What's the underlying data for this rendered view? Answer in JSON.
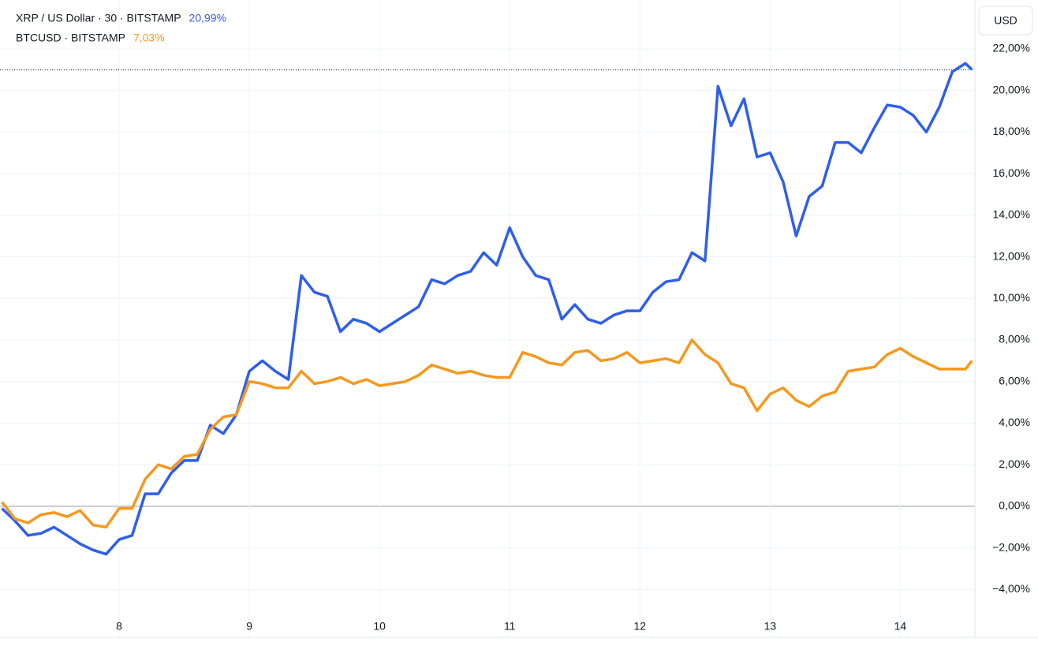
{
  "chart_data": {
    "type": "line",
    "button": "USD",
    "x": [
      7.1,
      7.2,
      7.3,
      7.4,
      7.5,
      7.6,
      7.7,
      7.8,
      7.9,
      8.0,
      8.1,
      8.2,
      8.3,
      8.4,
      8.5,
      8.6,
      8.7,
      8.8,
      8.9,
      9.0,
      9.1,
      9.2,
      9.3,
      9.4,
      9.5,
      9.6,
      9.7,
      9.8,
      9.9,
      10.0,
      10.1,
      10.2,
      10.3,
      10.4,
      10.5,
      10.6,
      10.7,
      10.8,
      10.9,
      11.0,
      11.1,
      11.2,
      11.3,
      11.4,
      11.5,
      11.6,
      11.7,
      11.8,
      11.9,
      12.0,
      12.1,
      12.2,
      12.3,
      12.4,
      12.5,
      12.6,
      12.7,
      12.8,
      12.9,
      13.0,
      13.1,
      13.2,
      13.3,
      13.4,
      13.5,
      13.6,
      13.7,
      13.8,
      13.9,
      14.0,
      14.1,
      14.2,
      14.3,
      14.4,
      14.5,
      14.55
    ],
    "series": [
      {
        "name": "XRP / US Dollar · 30 · BITSTAMP",
        "color": "#2f5fe8",
        "current": 20.99,
        "current_label": "20,99%",
        "values": [
          -0.1,
          -0.7,
          -1.4,
          -1.3,
          -1.0,
          -1.4,
          -1.8,
          -2.1,
          -2.3,
          -1.6,
          -1.4,
          0.6,
          0.6,
          1.6,
          2.2,
          2.2,
          3.9,
          3.5,
          4.4,
          6.5,
          7.0,
          6.5,
          6.1,
          11.1,
          10.3,
          10.1,
          8.4,
          9.0,
          8.8,
          8.4,
          8.8,
          9.2,
          9.6,
          10.9,
          10.7,
          11.1,
          11.3,
          12.2,
          11.6,
          13.4,
          12.0,
          11.1,
          10.9,
          9.0,
          9.7,
          9.0,
          8.8,
          9.2,
          9.4,
          9.4,
          10.3,
          10.8,
          10.9,
          12.2,
          11.8,
          20.2,
          18.3,
          19.6,
          16.8,
          17.0,
          15.6,
          13.0,
          14.9,
          15.4,
          17.5,
          17.5,
          17.0,
          18.2,
          19.3,
          19.2,
          18.8,
          18.0,
          19.2,
          20.9,
          21.3,
          21.0
        ]
      },
      {
        "name": "BTCUSD · BITSTAMP",
        "color": "#f4991f",
        "current": 7.03,
        "current_label": "7,03%",
        "values": [
          0.2,
          -0.6,
          -0.8,
          -0.4,
          -0.3,
          -0.5,
          -0.2,
          -0.9,
          -1.0,
          -0.1,
          -0.1,
          1.3,
          2.0,
          1.8,
          2.4,
          2.5,
          3.7,
          4.3,
          4.4,
          6.0,
          5.9,
          5.7,
          5.7,
          6.5,
          5.9,
          6.0,
          6.2,
          5.9,
          6.1,
          5.8,
          5.9,
          6.0,
          6.3,
          6.8,
          6.6,
          6.4,
          6.5,
          6.3,
          6.2,
          6.2,
          7.4,
          7.2,
          6.9,
          6.8,
          7.4,
          7.5,
          7.0,
          7.1,
          7.4,
          6.9,
          7.0,
          7.1,
          6.9,
          8.0,
          7.3,
          6.9,
          5.9,
          5.7,
          4.6,
          5.4,
          5.7,
          5.1,
          4.8,
          5.3,
          5.5,
          6.5,
          6.6,
          6.7,
          7.3,
          7.6,
          7.2,
          6.9,
          6.6,
          6.6,
          6.6,
          7.0
        ]
      }
    ],
    "xlim": [
      7.085,
      14.573
    ],
    "xticks": [
      8,
      9,
      10,
      11,
      12,
      13,
      14
    ],
    "ylim": [
      -6.3,
      24.35
    ],
    "yticks": [
      {
        "value": -4,
        "label": "−4,00%"
      },
      {
        "value": -2,
        "label": "−2,00%"
      },
      {
        "value": 0,
        "label": "0,00%"
      },
      {
        "value": 2,
        "label": "2,00%"
      },
      {
        "value": 4,
        "label": "4,00%"
      },
      {
        "value": 6,
        "label": "6,00%"
      },
      {
        "value": 8,
        "label": "8,00%"
      },
      {
        "value": 10,
        "label": "10,00%"
      },
      {
        "value": 12,
        "label": "12,00%"
      },
      {
        "value": 14,
        "label": "14,00%"
      },
      {
        "value": 16,
        "label": "16,00%"
      },
      {
        "value": 18,
        "label": "18,00%"
      },
      {
        "value": 20,
        "label": "20,00%"
      },
      {
        "value": 22,
        "label": "22,00%"
      }
    ],
    "grid": true
  }
}
